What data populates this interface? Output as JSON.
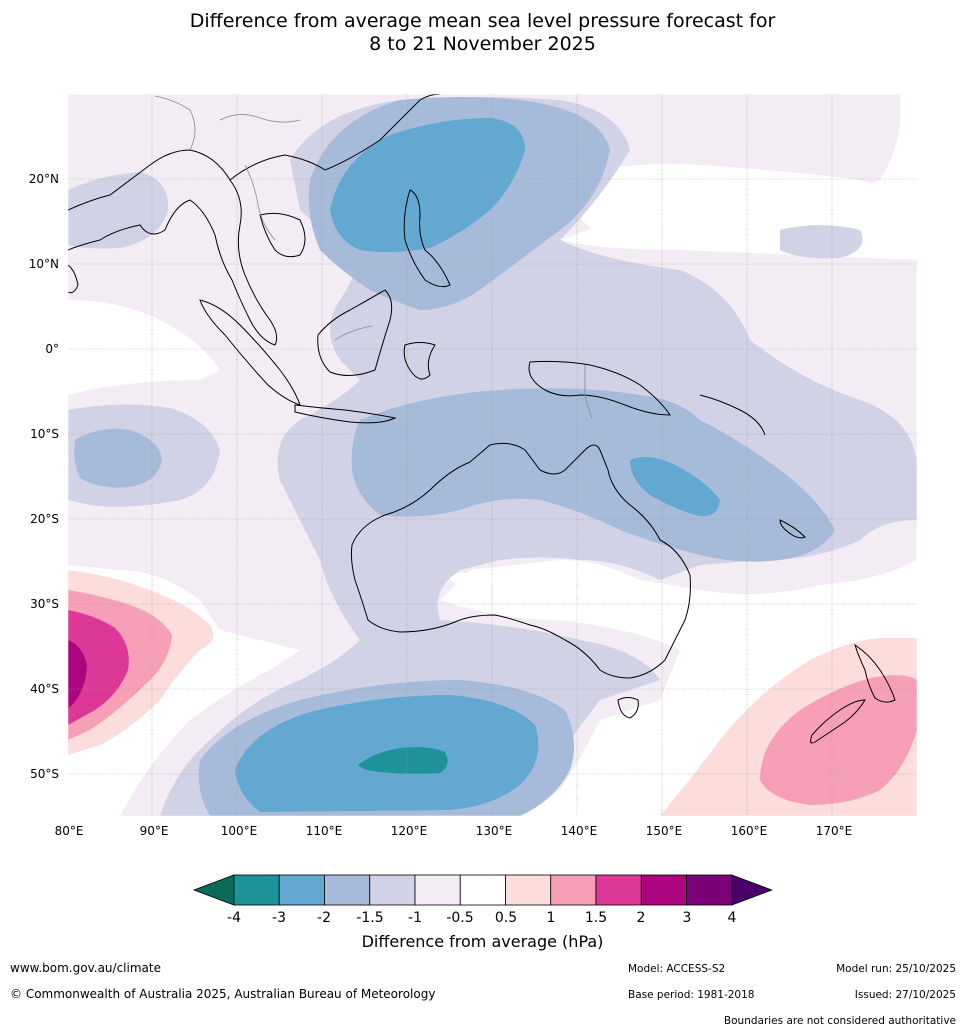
{
  "title_line1": "Difference from average mean sea level pressure forecast for",
  "title_line2": "8 to 21 November 2025",
  "map": {
    "lon_labels": [
      "80°E",
      "90°E",
      "100°E",
      "110°E",
      "120°E",
      "130°E",
      "140°E",
      "150°E",
      "160°E",
      "170°E"
    ],
    "lat_labels": [
      "20°N",
      "10°N",
      "0°",
      "10°S",
      "20°S",
      "30°S",
      "40°S",
      "50°S"
    ],
    "extent_lon": [
      80,
      180
    ],
    "extent_lat": [
      -55,
      30
    ]
  },
  "colorbar": {
    "title": "Difference from average (hPa)",
    "ticks": [
      "-4",
      "-3",
      "-2",
      "-1.5",
      "-1",
      "-0.5",
      "0.5",
      "1",
      "1.5",
      "2",
      "3",
      "4"
    ],
    "colors": {
      "lt_neg4": "#0b6b5a",
      "neg4_neg3": "#1e9399",
      "neg3_neg2": "#62a8d0",
      "neg2_neg15": "#a6bbd9",
      "neg15_neg1": "#d1d2e6",
      "neg1_neg05": "#f3ecf4",
      "neg05_05": "#ffffff",
      "p05_1": "#fddcdc",
      "p1_15": "#f89fb8",
      "p15_2": "#dd3897",
      "p2_3": "#ad0480",
      "p3_4": "#7a0177",
      "gt4": "#4a0068"
    }
  },
  "footer": {
    "website": "www.bom.gov.au/climate",
    "copyright": "© Commonwealth of Australia 2025, Australian Bureau of Meteorology",
    "model": "Model: ACCESS-S2",
    "base_period": "Base period: 1981-2018",
    "model_run": "Model run: 25/10/2025",
    "issued": "Issued: 27/10/2025",
    "disclaimer": "Boundaries are not considered authoritative"
  }
}
